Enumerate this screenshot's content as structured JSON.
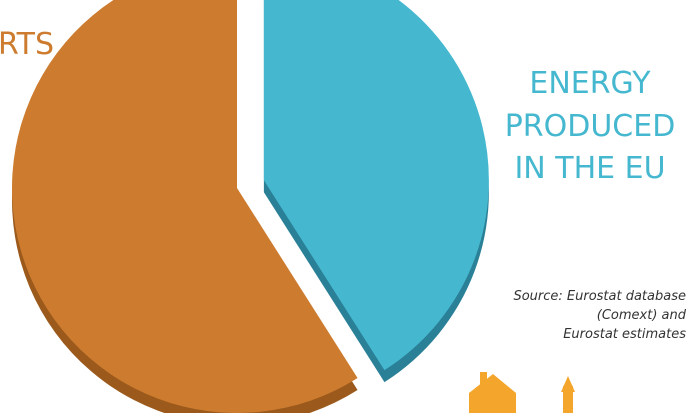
{
  "chart_data": {
    "type": "pie",
    "slices": [
      {
        "label": "IMPORTS",
        "display": "RTS",
        "share": 0.59,
        "color": "#cd7c2f",
        "shadow": "#9b5a1c"
      },
      {
        "label": "ENERGY PRODUCED IN THE EU",
        "share": 0.41,
        "exploded": true,
        "color": "#45b8d0",
        "shadow": "#2a8096"
      }
    ],
    "labels": {
      "imports_fragment": "RTS",
      "produced_line1": "ENERGY",
      "produced_line2": "PRODUCED",
      "produced_line3": "IN THE EU"
    },
    "source": {
      "line1": "Source: Eurostat database",
      "line2": "(Comext) and",
      "line3": "Eurostat estimates"
    }
  }
}
